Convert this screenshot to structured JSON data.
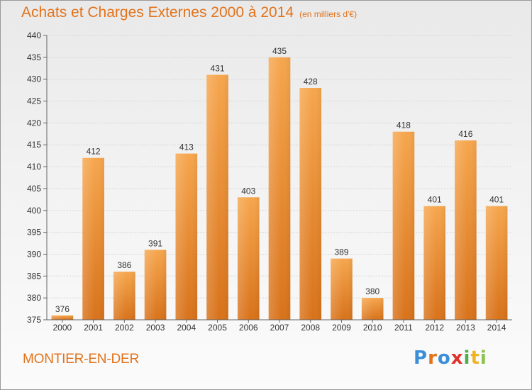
{
  "header": {
    "title": "Achats et Charges Externes 2000 à 2014",
    "unit": "(en milliers d'€)"
  },
  "footer": {
    "location": "MONTIER-EN-DER",
    "logo": "Proxiti",
    "logo_colors": [
      "#3b8ed8",
      "#e2731c",
      "#3b8ed8",
      "#e0312b",
      "#4cae4c",
      "#f0b323",
      "#8bc34a"
    ]
  },
  "colors": {
    "bar_top": "#f6a64d",
    "bar_bottom": "#d8721a",
    "title": "#e2731c"
  },
  "chart_data": {
    "type": "bar",
    "title": "Achats et Charges Externes 2000 à 2014",
    "categories": [
      "2000",
      "2001",
      "2002",
      "2003",
      "2004",
      "2005",
      "2006",
      "2007",
      "2008",
      "2009",
      "2010",
      "2011",
      "2012",
      "2013",
      "2014"
    ],
    "values": [
      376,
      412,
      386,
      391,
      413,
      431,
      403,
      435,
      428,
      389,
      380,
      418,
      401,
      416,
      401
    ],
    "ylim": [
      375,
      440
    ],
    "yticks": [
      375,
      380,
      385,
      390,
      395,
      400,
      405,
      410,
      415,
      420,
      425,
      430,
      435,
      440
    ],
    "grid": true,
    "data_labels": true
  }
}
